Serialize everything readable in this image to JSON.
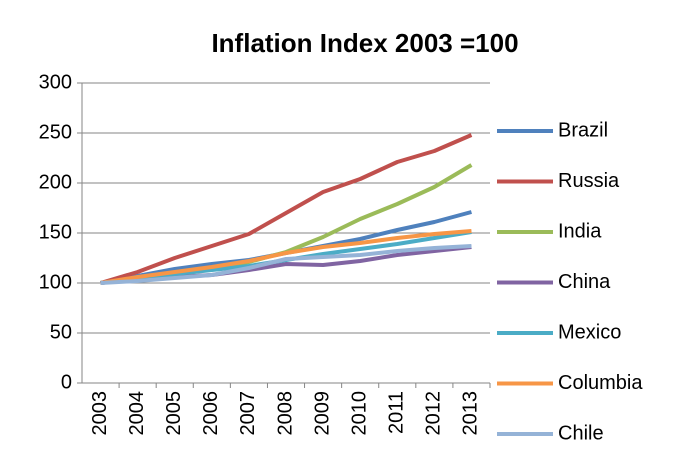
{
  "chart_data": {
    "type": "line",
    "title": "Inflation Index 2003 =100",
    "categories": [
      "2003",
      "2004",
      "2005",
      "2006",
      "2007",
      "2008",
      "2009",
      "2010",
      "2011",
      "2012",
      "2013"
    ],
    "series": [
      {
        "name": "Brazil",
        "color": "#4f81bd",
        "values": [
          100,
          107,
          114,
          119,
          123,
          130,
          137,
          144,
          153,
          161,
          171
        ]
      },
      {
        "name": "Russia",
        "color": "#c0504d",
        "values": [
          100,
          111,
          125,
          137,
          149,
          170,
          191,
          204,
          221,
          232,
          248
        ]
      },
      {
        "name": "India",
        "color": "#9bbb59",
        "values": [
          100,
          104,
          108,
          114,
          121,
          131,
          146,
          164,
          179,
          196,
          218
        ]
      },
      {
        "name": "China",
        "color": "#8064a2",
        "values": [
          100,
          104,
          106,
          108,
          113,
          119,
          118,
          122,
          128,
          132,
          136
        ]
      },
      {
        "name": "Mexico",
        "color": "#4bacc6",
        "values": [
          100,
          105,
          109,
          113,
          117,
          123,
          129,
          134,
          139,
          145,
          151
        ]
      },
      {
        "name": "Columbia",
        "color": "#f79646",
        "values": [
          100,
          106,
          111,
          116,
          122,
          130,
          136,
          140,
          145,
          149,
          152
        ]
      },
      {
        "name": "Chile",
        "color": "#95b3d7",
        "values": [
          100,
          102,
          105,
          108,
          115,
          124,
          126,
          128,
          132,
          135,
          137
        ]
      }
    ],
    "ylim": [
      0,
      300
    ],
    "yticks": [
      0,
      50,
      100,
      150,
      200,
      250,
      300
    ],
    "grid": true,
    "legend": "right"
  }
}
